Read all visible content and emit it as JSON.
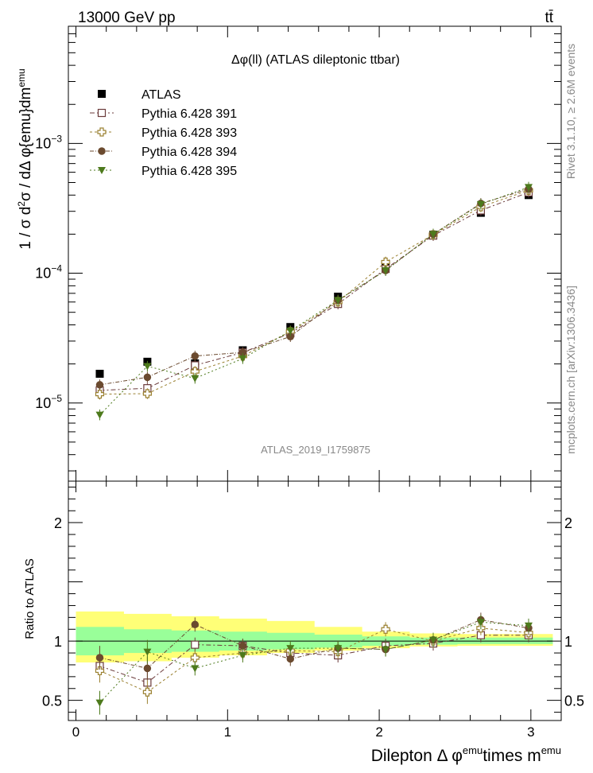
{
  "header": {
    "energy_label": "13000 GeV pp",
    "process_label": "tt̄"
  },
  "side_labels": {
    "rivet": "Rivet 3.1.10, ≥ 2.6M events",
    "mcplots": "mcplots.cern.ch [arXiv:1306.3436]"
  },
  "analysis_id": "ATLAS_2019_I1759875",
  "chart_data": [
    {
      "type": "scatter",
      "panel": "main",
      "title": "Δφ(ll) (ATLAS dileptonic ttbar)",
      "ylabel": "1 / σ d²σ / dΔ φ{emu}dm^emu",
      "yscale": "log",
      "ylim": [
        2.5e-06,
        0.008
      ],
      "xlim": [
        -0.05,
        3.2
      ],
      "x": [
        0.157,
        0.471,
        0.785,
        1.1,
        1.414,
        1.728,
        2.042,
        2.356,
        2.67,
        2.985
      ],
      "series": [
        {
          "name": "ATLAS",
          "marker": "filled-square",
          "color": "#000000",
          "values": [
            1.68e-05,
            2.08e-05,
            2.02e-05,
            2.55e-05,
            3.85e-05,
            6.6e-05,
            0.000113,
            0.000198,
            0.000292,
            0.0004
          ]
        },
        {
          "name": "Pythia 6.428 391",
          "marker": "open-square",
          "color": "#6b3b3b",
          "values": [
            1.25e-05,
            1.3e-05,
            1.95e-05,
            2.45e-05,
            3.45e-05,
            5.8e-05,
            0.000108,
            0.000195,
            0.000305,
            0.00042
          ]
        },
        {
          "name": "Pythia 6.428 393",
          "marker": "open-cross",
          "color": "#9a8030",
          "values": [
            1.17e-05,
            1.18e-05,
            1.75e-05,
            2.3e-05,
            3.55e-05,
            6e-05,
            0.000122,
            0.000198,
            0.000325,
            0.000435
          ]
        },
        {
          "name": "Pythia 6.428 394",
          "marker": "filled-circle",
          "color": "#6b4a2f",
          "values": [
            1.38e-05,
            1.58e-05,
            2.3e-05,
            2.45e-05,
            3.25e-05,
            6.2e-05,
            0.000105,
            0.0002,
            0.000345,
            0.000445
          ]
        },
        {
          "name": "Pythia 6.428 395",
          "marker": "filled-triangle-down",
          "color": "#4d7a1c",
          "values": [
            8.1e-06,
            1.92e-05,
            1.55e-05,
            2.2e-05,
            3.6e-05,
            6.2e-05,
            0.000105,
            0.0002,
            0.00034,
            0.00046
          ]
        }
      ],
      "yticks": [
        {
          "value": 1e-05,
          "base": "10",
          "exp": "−5"
        },
        {
          "value": 0.0001,
          "base": "10",
          "exp": "−4"
        },
        {
          "value": 0.001,
          "base": "10",
          "exp": "−3"
        }
      ]
    },
    {
      "type": "scatter",
      "panel": "ratio",
      "ylabel": "Ratio to ATLAS",
      "xlabel": "Dilepton Δ φ^emu times m^emu",
      "ylim": [
        0.33,
        2.35
      ],
      "xlim": [
        -0.05,
        3.2
      ],
      "yticks": [
        0.5,
        1,
        2
      ],
      "yticklabels": [
        "0.5",
        "1",
        "2"
      ],
      "xticks": [
        0,
        1,
        2,
        3
      ],
      "xticklabels": [
        "0",
        "1",
        "2",
        "3"
      ],
      "band_edges": [
        0.0,
        0.314,
        0.628,
        0.942,
        1.257,
        1.571,
        1.885,
        2.199,
        2.513,
        2.827,
        3.142
      ],
      "band_green": [
        [
          0.88,
          1.12
        ],
        [
          0.9,
          1.1
        ],
        [
          0.91,
          1.09
        ],
        [
          0.92,
          1.08
        ],
        [
          0.93,
          1.07
        ],
        [
          0.945,
          1.055
        ],
        [
          0.96,
          1.04
        ],
        [
          0.97,
          1.03
        ],
        [
          0.975,
          1.03
        ],
        [
          0.975,
          1.03
        ]
      ],
      "band_yellow": [
        [
          0.82,
          1.25
        ],
        [
          0.83,
          1.23
        ],
        [
          0.86,
          1.21
        ],
        [
          0.88,
          1.19
        ],
        [
          0.9,
          1.17
        ],
        [
          0.92,
          1.12
        ],
        [
          0.94,
          1.08
        ],
        [
          0.955,
          1.065
        ],
        [
          0.96,
          1.06
        ],
        [
          0.96,
          1.06
        ]
      ],
      "series": [
        {
          "name": "Pythia 6.428 391",
          "values": [
            0.79,
            0.65,
            0.97,
            0.96,
            0.9,
            0.88,
            0.96,
            0.98,
            1.05,
            1.05
          ]
        },
        {
          "name": "Pythia 6.428 393",
          "values": [
            0.75,
            0.57,
            0.86,
            0.9,
            0.92,
            0.91,
            1.1,
            1.0,
            1.11,
            1.07
          ]
        },
        {
          "name": "Pythia 6.428 394",
          "values": [
            0.86,
            0.77,
            1.14,
            0.96,
            0.85,
            0.94,
            0.93,
            1.01,
            1.18,
            1.11
          ]
        },
        {
          "name": "Pythia 6.428 395",
          "values": [
            0.48,
            0.91,
            0.77,
            0.88,
            0.94,
            0.94,
            0.93,
            1.01,
            1.16,
            1.13
          ]
        }
      ]
    }
  ]
}
